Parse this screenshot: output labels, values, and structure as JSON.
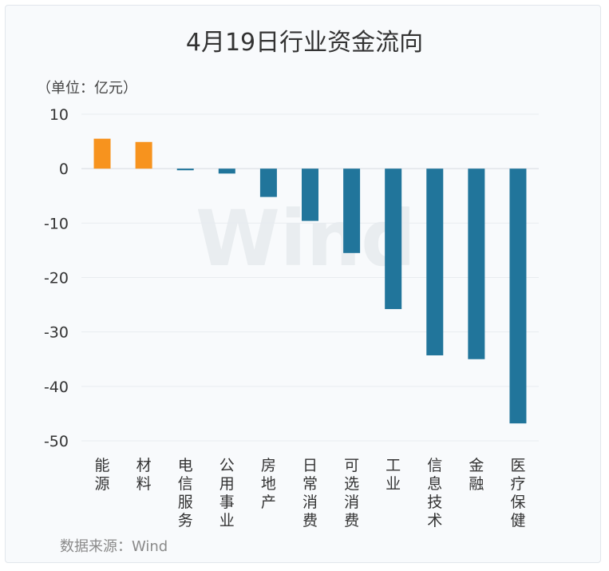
{
  "title": "4月19日行业资金流向",
  "unit_label": "（单位：亿元）",
  "source_label": "数据来源：Wind",
  "watermark": "Wind",
  "chart_data": {
    "type": "bar",
    "title": "4月19日行业资金流向",
    "xlabel": "",
    "ylabel": "（单位：亿元）",
    "ylim": [
      -50,
      10
    ],
    "yticks": [
      10,
      0,
      -10,
      -20,
      -30,
      -40,
      -50
    ],
    "grid": true,
    "categories": [
      "能源",
      "材料",
      "电信服务",
      "公用事业",
      "房地产",
      "日常消费",
      "可选消费",
      "工业",
      "信息技术",
      "金融",
      "医疗保健"
    ],
    "values": [
      5.5,
      4.9,
      -0.3,
      -0.9,
      -5.2,
      -9.6,
      -15.5,
      -25.8,
      -34.3,
      -35.0,
      -46.8
    ],
    "colors": {
      "positive": "#f7931e",
      "negative": "#21759b"
    }
  }
}
